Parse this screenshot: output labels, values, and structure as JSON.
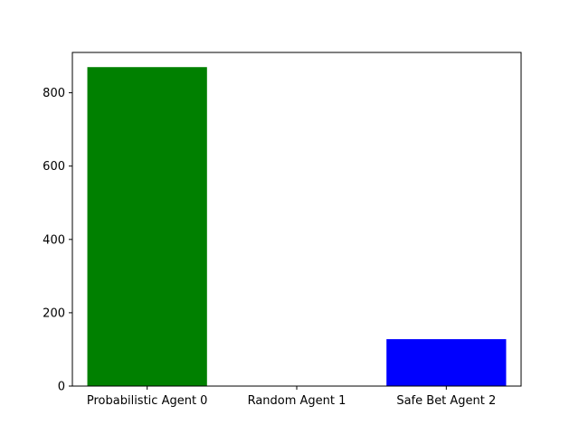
{
  "chart_data": {
    "type": "bar",
    "title": "",
    "xlabel": "",
    "ylabel": "",
    "categories": [
      "Probabilistic Agent 0",
      "Random Agent 1",
      "Safe Bet Agent 2"
    ],
    "values": [
      870,
      0,
      128
    ],
    "colors": [
      "#008000",
      "#008000",
      "#0000ff"
    ],
    "ylim": [
      0,
      910
    ],
    "yticks": [
      0,
      200,
      400,
      600,
      800
    ],
    "grid": false
  }
}
